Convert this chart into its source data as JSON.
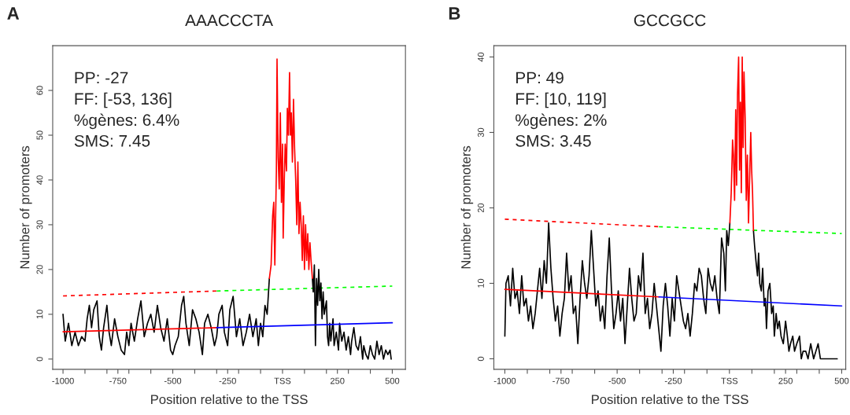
{
  "chart_data": [
    {
      "type": "line",
      "title": "AAACCCTA",
      "xlabel": "Position relative to the TSS",
      "ylabel": "Number of promoters",
      "annotations": [
        "A",
        "PP: -27",
        "FF: [-53, 136]",
        "%gènes: 6.4%",
        "SMS: 7.45"
      ],
      "xlim": [
        -1047,
        560
      ],
      "ylim": [
        -2.3,
        70
      ],
      "xticks": [
        -1000,
        {
          "value": -900,
          "label": null
        },
        {
          "value": -800,
          "label": null
        },
        -750,
        {
          "value": -700,
          "label": null
        },
        {
          "value": -600,
          "label": null
        },
        -500,
        {
          "value": -400,
          "label": null
        },
        {
          "value": -300,
          "label": null
        },
        -250,
        {
          "value": -200,
          "label": null
        },
        {
          "value": -100,
          "label": null
        },
        {
          "value": 0,
          "label": "TSS"
        },
        {
          "value": 100,
          "label": null
        },
        {
          "value": 200,
          "label": null
        },
        250,
        {
          "value": 300,
          "label": null
        },
        {
          "value": 400,
          "label": null
        },
        500
      ],
      "yticks": [
        0,
        10,
        20,
        30,
        40,
        50,
        60
      ],
      "grid": false,
      "marker": "none",
      "series": [
        {
          "color": "#ff0000",
          "line_style": "dashed",
          "x": [
            -1000,
            -300
          ],
          "values": [
            14.1,
            15.2
          ]
        },
        {
          "color": "#00ff00",
          "line_style": "dashed",
          "x": [
            -300,
            500
          ],
          "values": [
            15.2,
            16.3
          ]
        },
        {
          "color": "#000000",
          "line_style": "solid",
          "x": [
            -1000,
            -990,
            -975,
            -960,
            -945,
            -930,
            -915,
            -900,
            -890,
            -880,
            -870,
            -860,
            -845,
            -835,
            -825,
            -815,
            -800,
            -790,
            -780,
            -765,
            -750,
            -735,
            -720,
            -710,
            -700,
            -690,
            -675,
            -660,
            -645,
            -630,
            -615,
            -600,
            -585,
            -570,
            -555,
            -540,
            -525,
            -510,
            -500,
            -490,
            -475,
            -460,
            -450,
            -440,
            -425,
            -410,
            -395,
            -380,
            -365,
            -355,
            -340,
            -325,
            -310,
            -300,
            -290,
            -275,
            -265,
            -250,
            -240,
            -225,
            -210,
            -195,
            -180,
            -165,
            -150,
            -135,
            -120,
            -110,
            -100,
            -90,
            -80,
            -70,
            -60,
            40,
            136,
            140,
            145,
            150,
            155,
            160,
            165,
            170,
            175,
            180,
            185,
            190,
            200,
            205,
            210,
            215,
            220,
            230,
            235,
            245,
            255,
            260,
            270,
            280,
            290,
            300,
            310,
            315,
            325,
            335,
            345,
            355,
            365,
            370,
            380,
            390,
            400,
            410,
            420,
            430,
            440,
            450,
            460,
            470,
            480,
            490,
            495
          ],
          "values": [
            10,
            4,
            8,
            3,
            6,
            3,
            5,
            4,
            9,
            12,
            7,
            11,
            13,
            5,
            2,
            7,
            12,
            6,
            3,
            9,
            5,
            2,
            1,
            6,
            3,
            8,
            4,
            9,
            13,
            5,
            8,
            10,
            6,
            12,
            7,
            4,
            9,
            2,
            1,
            3,
            5,
            12,
            14,
            8,
            3,
            11,
            9,
            6,
            1,
            8,
            10,
            7,
            3,
            5,
            10,
            12,
            6,
            3,
            11,
            14,
            5,
            9,
            3,
            6,
            10,
            5,
            9,
            3,
            8,
            5,
            12,
            10,
            18,
            null,
            18,
            15,
            21,
            3,
            18,
            12,
            20,
            13,
            17,
            9,
            15,
            10,
            13,
            5,
            3,
            8,
            4,
            9,
            3,
            6,
            2,
            8,
            4,
            6,
            2,
            5,
            1,
            4,
            7,
            3,
            2,
            5,
            0,
            3,
            1,
            0,
            3,
            1,
            0,
            4,
            1,
            3,
            0,
            2,
            1,
            2,
            0
          ]
        },
        {
          "color": "#ff0000",
          "line_style": "solid",
          "x": [
            -60,
            -52,
            -45,
            -40,
            -35,
            -28,
            -25,
            -20,
            -15,
            -10,
            -5,
            0,
            3,
            8,
            12,
            18,
            22,
            27,
            32,
            36,
            40,
            45,
            50,
            55,
            60,
            65,
            70,
            75,
            80,
            85,
            90,
            95,
            100,
            105,
            110,
            115,
            120,
            125,
            130,
            136
          ],
          "values": [
            18,
            21,
            32,
            35,
            21,
            42,
            67,
            45,
            38,
            55,
            35,
            48,
            27,
            40,
            48,
            42,
            56,
            50,
            64,
            50,
            55,
            44,
            58,
            47,
            40,
            30,
            44,
            28,
            35,
            30,
            22,
            32,
            20,
            30,
            22,
            28,
            20,
            26,
            22,
            18
          ]
        },
        {
          "color": "#ff0000",
          "line_style": "solid",
          "x": [
            -1000,
            -300
          ],
          "values": [
            6.1,
            7.0
          ]
        },
        {
          "color": "#0000ff",
          "line_style": "solid",
          "x": [
            -300,
            500
          ],
          "values": [
            7.0,
            8.1
          ]
        }
      ]
    },
    {
      "type": "line",
      "title": "GCCGCC",
      "xlabel": "Position relative to the TSS",
      "ylabel": "Number of promoters",
      "annotations": [
        "B",
        "PP: 49",
        "FF: [10, 119]",
        "%gènes: 2%",
        "SMS: 3.45"
      ],
      "xlim": [
        -1049,
        518
      ],
      "ylim": [
        -1.4,
        41.5
      ],
      "xticks": [
        -1000,
        {
          "value": -900,
          "label": null
        },
        {
          "value": -800,
          "label": null
        },
        -750,
        {
          "value": -700,
          "label": null
        },
        {
          "value": -600,
          "label": null
        },
        -500,
        {
          "value": -400,
          "label": null
        },
        {
          "value": -300,
          "label": null
        },
        -250,
        {
          "value": -200,
          "label": null
        },
        {
          "value": -100,
          "label": null
        },
        {
          "value": 0,
          "label": "TSS"
        },
        {
          "value": 100,
          "label": null
        },
        {
          "value": 200,
          "label": null
        },
        250,
        {
          "value": 300,
          "label": null
        },
        {
          "value": 400,
          "label": null
        },
        500
      ],
      "yticks": [
        0,
        10,
        20,
        30,
        40
      ],
      "grid": false,
      "marker": "none",
      "series": [
        {
          "color": "#ff0000",
          "line_style": "dashed",
          "x": [
            -1000,
            -314
          ],
          "values": [
            18.5,
            17.5
          ]
        },
        {
          "color": "#00ff00",
          "line_style": "dashed",
          "x": [
            -314,
            500
          ],
          "values": [
            17.5,
            16.6
          ]
        },
        {
          "color": "#000000",
          "line_style": "solid",
          "x": [
            -1000,
            -995,
            -985,
            -975,
            -965,
            -955,
            -945,
            -935,
            -925,
            -915,
            -905,
            -895,
            -885,
            -875,
            -865,
            -855,
            -845,
            -835,
            -825,
            -815,
            -805,
            -795,
            -785,
            -775,
            -765,
            -755,
            -745,
            -735,
            -725,
            -715,
            -705,
            -695,
            -685,
            -675,
            -665,
            -655,
            -645,
            -635,
            -625,
            -615,
            -605,
            -595,
            -585,
            -575,
            -565,
            -555,
            -545,
            -535,
            -525,
            -515,
            -505,
            -495,
            -485,
            -475,
            -465,
            -455,
            -445,
            -435,
            -425,
            -415,
            -405,
            -395,
            -385,
            -375,
            -365,
            -355,
            -345,
            -335,
            -325,
            -315,
            -305,
            -295,
            -285,
            -275,
            -265,
            -255,
            -245,
            -235,
            -225,
            -215,
            -205,
            -195,
            -185,
            -175,
            -165,
            -155,
            -145,
            -135,
            -125,
            -115,
            -105,
            -95,
            -85,
            -75,
            -65,
            -55,
            -45,
            -35,
            -25,
            -18,
            -12,
            -5,
            2,
            50,
            107,
            112,
            118,
            125,
            130,
            135,
            142,
            148,
            155,
            160,
            165,
            172,
            180,
            188,
            195,
            200,
            208,
            215,
            222,
            230,
            240,
            250,
            258,
            265,
            272,
            282,
            290,
            300,
            312,
            320,
            328,
            340,
            350,
            362,
            375,
            385,
            395,
            405,
            420,
            440,
            460,
            480
          ],
          "values": [
            3,
            10,
            11,
            7,
            12,
            8,
            9,
            6,
            11,
            7,
            8,
            5,
            7,
            4,
            6,
            9,
            12,
            8,
            13,
            10,
            18,
            12,
            8,
            5,
            7,
            3,
            6,
            8,
            14,
            9,
            11,
            6,
            7,
            2,
            8,
            13,
            10,
            8,
            11,
            17,
            12,
            7,
            9,
            5,
            7,
            4,
            11,
            16,
            9,
            4,
            6,
            9,
            5,
            8,
            2,
            7,
            12,
            8,
            5,
            6,
            11,
            9,
            14,
            6,
            8,
            4,
            6,
            10,
            7,
            4,
            1,
            7,
            10,
            7,
            3,
            8,
            5,
            11,
            9,
            7,
            5,
            4,
            6,
            3,
            6,
            10,
            9,
            12,
            11,
            8,
            6,
            12,
            10,
            9,
            11,
            8,
            6,
            16,
            14,
            9,
            17,
            15,
            18,
            null,
            17,
            15,
            13,
            11,
            14,
            10,
            9,
            12,
            7,
            8,
            4,
            9,
            10,
            6,
            7,
            3,
            6,
            4,
            5,
            3,
            2,
            5,
            3,
            1,
            2,
            3,
            1,
            2,
            3,
            0,
            1,
            1,
            0,
            2,
            0,
            1,
            2,
            0,
            0,
            0,
            0,
            0
          ]
        },
        {
          "color": "#ff0000",
          "line_style": "solid",
          "x": [
            2,
            8,
            14,
            18,
            23,
            28,
            32,
            36,
            41,
            45,
            49,
            53,
            57,
            61,
            65,
            70,
            75,
            80,
            85,
            90,
            95,
            99,
            103,
            107
          ],
          "values": [
            18,
            22,
            29,
            27,
            21,
            33,
            23,
            35,
            40,
            25,
            34,
            22,
            40,
            28,
            38,
            32,
            21,
            27,
            18,
            24,
            30,
            25,
            22,
            17
          ]
        },
        {
          "color": "#ff0000",
          "line_style": "solid",
          "x": [
            -1000,
            -314
          ],
          "values": [
            9.2,
            8.2
          ]
        },
        {
          "color": "#0000ff",
          "line_style": "solid",
          "x": [
            -314,
            500
          ],
          "values": [
            8.2,
            7.0
          ]
        }
      ]
    }
  ]
}
